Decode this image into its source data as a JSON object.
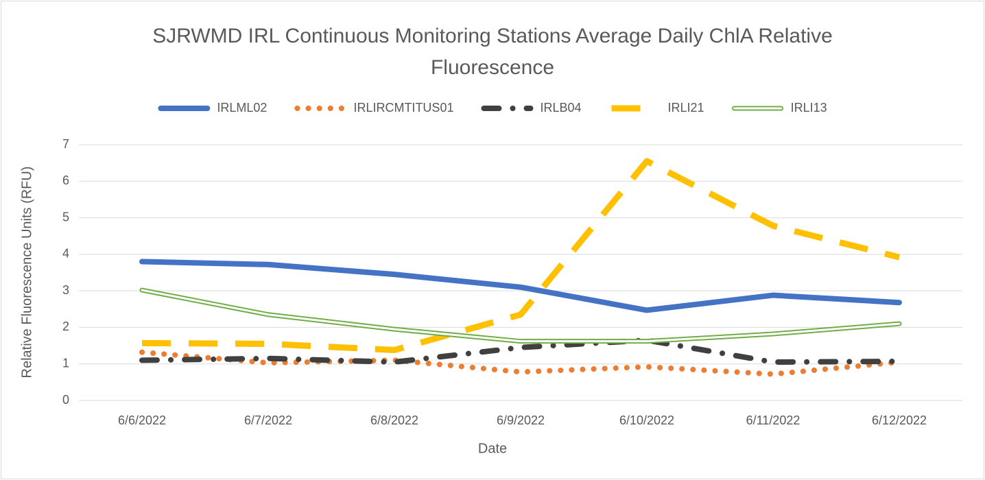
{
  "chart_data": {
    "type": "line",
    "title": "SJRWMD IRL Continuous Monitoring Stations Average Daily ChlA Relative Fluorescence",
    "x_label": "Date",
    "y_label": "Relative Fluorescence Units (RFU)",
    "categories": [
      "6/6/2022",
      "6/7/2022",
      "6/8/2022",
      "6/9/2022",
      "6/10/2022",
      "6/11/2022",
      "6/12/2022"
    ],
    "series": [
      {
        "name": "IRLML02",
        "color": "#4472c4",
        "style": "solid",
        "values": [
          3.8,
          3.72,
          3.45,
          3.1,
          2.47,
          2.88,
          2.68
        ]
      },
      {
        "name": "IRLIRCMTITUS01",
        "color": "#ed7d31",
        "style": "dot",
        "values": [
          1.32,
          1.03,
          1.1,
          0.78,
          0.92,
          0.72,
          1.05
        ]
      },
      {
        "name": "IRLB04",
        "color": "#404040",
        "style": "dash-dot",
        "values": [
          1.1,
          1.15,
          1.05,
          1.45,
          1.65,
          1.05,
          1.07
        ]
      },
      {
        "name": "IRLI21",
        "color": "#ffc000",
        "style": "dash",
        "values": [
          1.57,
          1.55,
          1.38,
          2.35,
          6.55,
          4.78,
          3.92
        ]
      },
      {
        "name": "IRLI13",
        "color": "#70ad47",
        "style": "double",
        "values": [
          3.02,
          2.35,
          1.95,
          1.62,
          1.62,
          1.82,
          2.1
        ]
      }
    ],
    "ylim": [
      0,
      7
    ],
    "yticks": [
      0,
      1,
      2,
      3,
      4,
      5,
      6,
      7
    ],
    "grid": true,
    "legend": "top"
  }
}
